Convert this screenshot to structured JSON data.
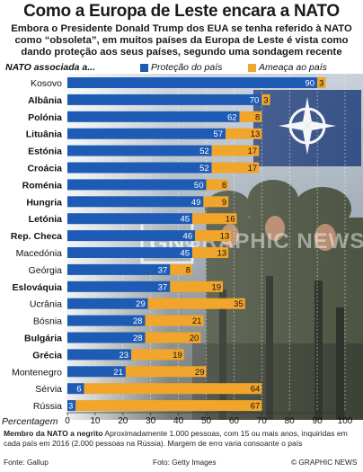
{
  "header": {
    "title": "Como a Europa de Leste encara a NATO",
    "subtitle": "Embora o Presidente Donald Trump dos EUA se tenha referido à NATO como “obsoleta”, em muitos países da Europa de Leste é vista como dando proteção aos seus países, segundo uma sondagem recente"
  },
  "legend": {
    "caption": "NATO associada a...",
    "protection": "Proteção do país",
    "threat": "Ameaça ao país"
  },
  "axis_caption": "Percentagem",
  "watermark": "GRAPHIC NEWS",
  "footnote": {
    "bold": "Membro da NATO a negrito",
    "text": " Aproximadamente 1.000 pessoas, com 15 ou mais anos, inquiridas em cada país em 2016 (2.000 pessoas na Rússia). Margem de erro varia consoante o país"
  },
  "footer": {
    "source": "Fonte: Gallup",
    "photo": "Foto: Getty Images",
    "credit": "© GRAPHIC NEWS"
  },
  "colors": {
    "protection": "#1d5bb5",
    "threat": "#f2a52b",
    "photo_dark": "#3a3f33",
    "photo_sky": "#aeb8c2"
  },
  "chart_data": {
    "type": "bar",
    "orientation": "horizontal",
    "stacked": true,
    "xlim": [
      0,
      100
    ],
    "xticks": [
      0,
      10,
      20,
      30,
      40,
      50,
      60,
      70,
      80,
      90,
      100
    ],
    "series": [
      {
        "name": "Proteção do país",
        "values": [
          90,
          70,
          62,
          57,
          52,
          52,
          50,
          49,
          45,
          46,
          45,
          37,
          37,
          29,
          28,
          28,
          23,
          21,
          6,
          3
        ]
      },
      {
        "name": "Ameaça ao país",
        "values": [
          3,
          3,
          8,
          13,
          17,
          17,
          8,
          9,
          16,
          13,
          13,
          8,
          19,
          35,
          21,
          20,
          19,
          29,
          64,
          67
        ]
      }
    ],
    "categories": [
      "Kosovo",
      "Albânia",
      "Polónia",
      "Lituânia",
      "Estónia",
      "Croácia",
      "Roménia",
      "Hungria",
      "Letónia",
      "Rep. Checa",
      "Macedónia",
      "Geórgia",
      "Eslováquia",
      "Ucrânia",
      "Bósnia",
      "Bulgária",
      "Grécia",
      "Montenegro",
      "Sérvia",
      "Rússia"
    ],
    "nato_member": [
      false,
      true,
      true,
      true,
      true,
      true,
      true,
      true,
      true,
      true,
      false,
      false,
      true,
      false,
      false,
      true,
      true,
      false,
      false,
      false
    ]
  }
}
